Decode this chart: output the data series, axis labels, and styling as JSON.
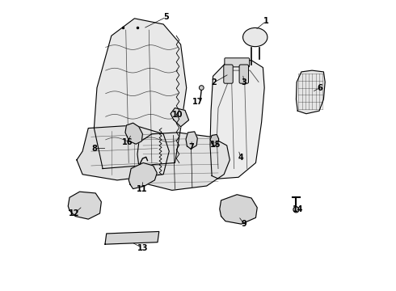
{
  "background_color": "#ffffff",
  "line_color": "#000000",
  "fig_width": 4.9,
  "fig_height": 3.6,
  "dpi": 100,
  "label_targets": {
    "1": {
      "lpos": [
        0.735,
        0.93
      ],
      "tpos": [
        0.698,
        0.9
      ]
    },
    "2": {
      "lpos": [
        0.555,
        0.718
      ],
      "tpos": [
        0.608,
        0.748
      ]
    },
    "3": {
      "lpos": [
        0.66,
        0.718
      ],
      "tpos": [
        0.655,
        0.748
      ]
    },
    "4": {
      "lpos": [
        0.648,
        0.458
      ],
      "tpos": [
        0.64,
        0.485
      ]
    },
    "5": {
      "lpos": [
        0.39,
        0.945
      ],
      "tpos": [
        0.31,
        0.905
      ]
    },
    "6": {
      "lpos": [
        0.922,
        0.7
      ],
      "tpos": [
        0.895,
        0.685
      ]
    },
    "7": {
      "lpos": [
        0.478,
        0.495
      ],
      "tpos": [
        0.478,
        0.52
      ]
    },
    "8": {
      "lpos": [
        0.142,
        0.49
      ],
      "tpos": [
        0.185,
        0.49
      ]
    },
    "9": {
      "lpos": [
        0.66,
        0.228
      ],
      "tpos": [
        0.64,
        0.255
      ]
    },
    "10": {
      "lpos": [
        0.428,
        0.605
      ],
      "tpos": [
        0.435,
        0.6
      ]
    },
    "11": {
      "lpos": [
        0.305,
        0.348
      ],
      "tpos": [
        0.31,
        0.38
      ]
    },
    "12": {
      "lpos": [
        0.072,
        0.265
      ],
      "tpos": [
        0.1,
        0.29
      ]
    },
    "13": {
      "lpos": [
        0.308,
        0.145
      ],
      "tpos": [
        0.27,
        0.165
      ]
    },
    "14": {
      "lpos": [
        0.845,
        0.278
      ],
      "tpos": [
        0.84,
        0.295
      ]
    },
    "15": {
      "lpos": [
        0.562,
        0.502
      ],
      "tpos": [
        0.556,
        0.518
      ]
    },
    "16": {
      "lpos": [
        0.255,
        0.512
      ],
      "tpos": [
        0.27,
        0.54
      ]
    },
    "17": {
      "lpos": [
        0.498,
        0.652
      ],
      "tpos": [
        0.51,
        0.665
      ]
    }
  }
}
